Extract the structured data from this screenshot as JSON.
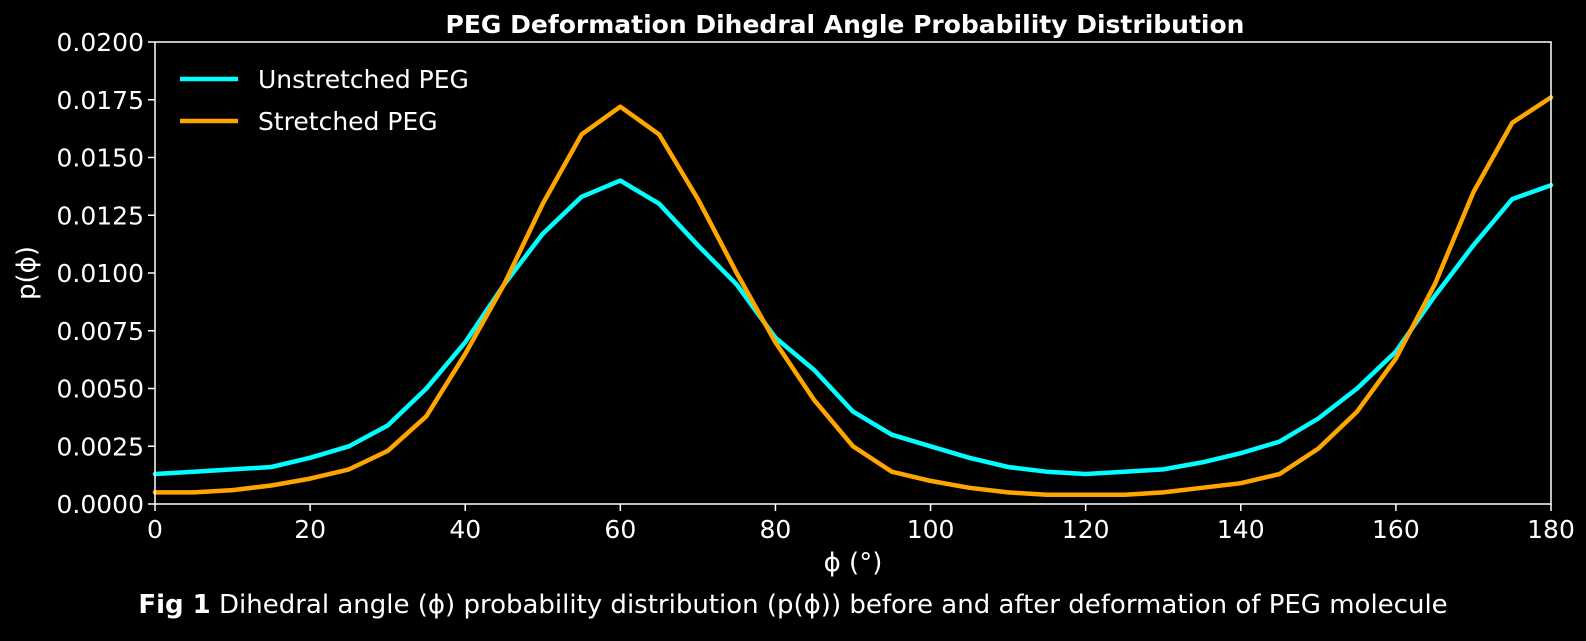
{
  "chart_data": {
    "type": "line",
    "title": "PEG Deformation Dihedral Angle Probability Distribution",
    "xlabel": "ϕ (°)",
    "ylabel": "p(ϕ)",
    "xlim": [
      0,
      180
    ],
    "ylim": [
      0,
      0.02
    ],
    "xticks": [
      "0",
      "20",
      "40",
      "60",
      "80",
      "100",
      "120",
      "140",
      "160",
      "180"
    ],
    "yticks": [
      "0.0000",
      "0.0025",
      "0.0050",
      "0.0075",
      "0.0100",
      "0.0125",
      "0.0150",
      "0.0175",
      "0.0200"
    ],
    "grid": false,
    "legend_position": "top-left",
    "x": [
      0,
      5,
      10,
      15,
      20,
      25,
      30,
      35,
      40,
      45,
      50,
      55,
      60,
      65,
      70,
      75,
      80,
      85,
      90,
      95,
      100,
      105,
      110,
      115,
      120,
      125,
      130,
      135,
      140,
      145,
      150,
      155,
      160,
      165,
      170,
      175,
      180
    ],
    "series": [
      {
        "name": "Unstretched PEG",
        "color": "#00ffff",
        "values": [
          0.0013,
          0.0014,
          0.0015,
          0.0016,
          0.002,
          0.0025,
          0.0034,
          0.005,
          0.007,
          0.0095,
          0.0117,
          0.0133,
          0.014,
          0.013,
          0.0112,
          0.0095,
          0.0072,
          0.0058,
          0.004,
          0.003,
          0.0025,
          0.002,
          0.0016,
          0.0014,
          0.0013,
          0.0014,
          0.0015,
          0.0018,
          0.0022,
          0.0027,
          0.0037,
          0.005,
          0.0066,
          0.009,
          0.0112,
          0.0132,
          0.0138
        ]
      },
      {
        "name": "Stretched PEG",
        "color": "#ffa500",
        "values": [
          0.0005,
          0.0005,
          0.0006,
          0.0008,
          0.0011,
          0.0015,
          0.0023,
          0.0038,
          0.0065,
          0.0095,
          0.013,
          0.016,
          0.0172,
          0.016,
          0.0132,
          0.01,
          0.007,
          0.0045,
          0.0025,
          0.0014,
          0.001,
          0.0007,
          0.0005,
          0.0004,
          0.0004,
          0.0004,
          0.0005,
          0.0007,
          0.0009,
          0.0013,
          0.0024,
          0.004,
          0.0063,
          0.0095,
          0.0135,
          0.0165,
          0.0176
        ]
      }
    ]
  },
  "caption": {
    "bold": "Fig 1",
    "text": " Dihedral angle (ϕ) probability distribution (p(ϕ)) before and after deformation of PEG molecule"
  }
}
